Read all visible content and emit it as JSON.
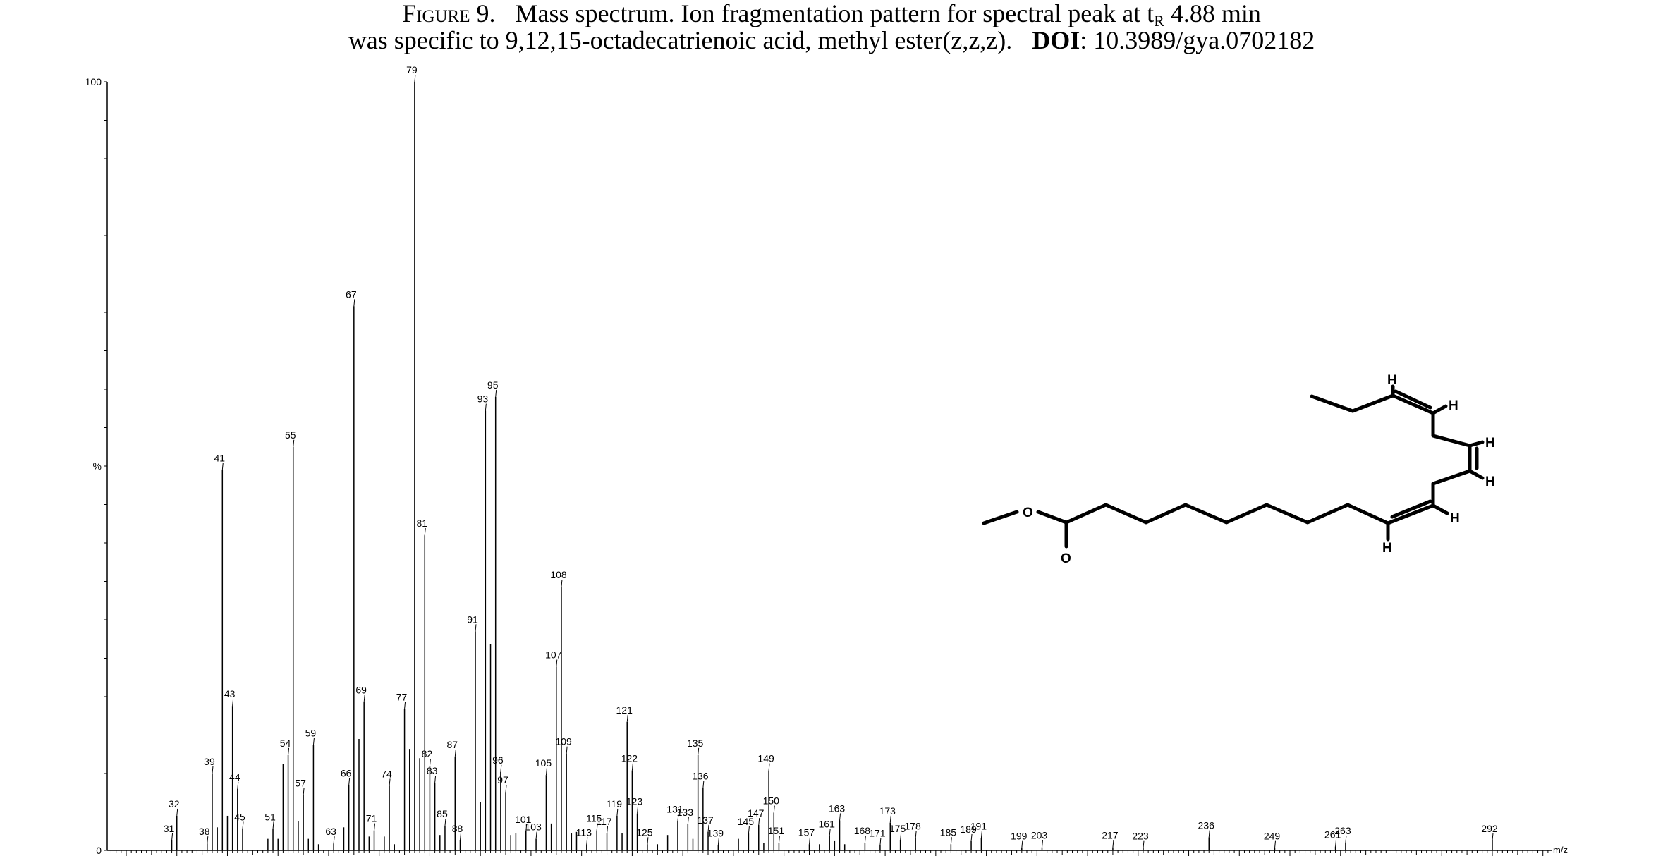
{
  "caption": {
    "figure_label": "Figure 9.",
    "line1_text": "Mass spectrum. Ion fragmentation pattern for spectral peak at t",
    "subscript": "R",
    "line1_end": " 4.88 min",
    "line2_text": "was specific to 9,12,15-octadecatrienoic acid, methyl ester(z,z,z).",
    "doi_label": "DOI",
    "doi_value": ": 10.3989/gya.0702182"
  },
  "chart_data": {
    "type": "bar",
    "xlabel": "m/z",
    "ylabel": "%",
    "xlim": [
      16,
      310
    ],
    "ylim": [
      0,
      100
    ],
    "y_ticks": [
      "0",
      "%",
      "100"
    ],
    "x_ticks": [
      22,
      32,
      42,
      52,
      62,
      72,
      82,
      92,
      102,
      112,
      122,
      132,
      142,
      152,
      162,
      172,
      182,
      192,
      202,
      212,
      222,
      232,
      242,
      252,
      262,
      272,
      282,
      292,
      302
    ],
    "peaks": [
      {
        "mz": 31,
        "value": 1.3,
        "label": "31"
      },
      {
        "mz": 32,
        "value": 4.5,
        "label": "32"
      },
      {
        "mz": 38,
        "value": 0.9,
        "label": "38"
      },
      {
        "mz": 39,
        "value": 10.0,
        "label": "39"
      },
      {
        "mz": 40,
        "value": 3.0
      },
      {
        "mz": 41,
        "value": 49.5,
        "label": "41"
      },
      {
        "mz": 42,
        "value": 4.5
      },
      {
        "mz": 43,
        "value": 18.8,
        "label": "43"
      },
      {
        "mz": 44,
        "value": 8.0,
        "label": "44"
      },
      {
        "mz": 45,
        "value": 2.8,
        "label": "45"
      },
      {
        "mz": 50,
        "value": 1.5
      },
      {
        "mz": 51,
        "value": 2.8,
        "label": "51"
      },
      {
        "mz": 52,
        "value": 1.5
      },
      {
        "mz": 53,
        "value": 11.2
      },
      {
        "mz": 54,
        "value": 12.4,
        "label": "54"
      },
      {
        "mz": 55,
        "value": 52.5,
        "label": "55"
      },
      {
        "mz": 56,
        "value": 3.8
      },
      {
        "mz": 57,
        "value": 7.2,
        "label": "57"
      },
      {
        "mz": 58,
        "value": 1.5
      },
      {
        "mz": 59,
        "value": 13.7,
        "label": "59"
      },
      {
        "mz": 60,
        "value": 0.8
      },
      {
        "mz": 63,
        "value": 0.9,
        "label": "63"
      },
      {
        "mz": 65,
        "value": 3.0
      },
      {
        "mz": 66,
        "value": 8.5,
        "label": "66"
      },
      {
        "mz": 67,
        "value": 70.8,
        "label": "67"
      },
      {
        "mz": 68,
        "value": 14.5
      },
      {
        "mz": 69,
        "value": 19.3,
        "label": "69"
      },
      {
        "mz": 70,
        "value": 1.8
      },
      {
        "mz": 71,
        "value": 2.6,
        "label": "71"
      },
      {
        "mz": 73,
        "value": 1.8
      },
      {
        "mz": 74,
        "value": 8.4,
        "label": "74"
      },
      {
        "mz": 75,
        "value": 0.8
      },
      {
        "mz": 77,
        "value": 18.4,
        "label": "77"
      },
      {
        "mz": 78,
        "value": 13.2
      },
      {
        "mz": 79,
        "value": 100,
        "label": "79"
      },
      {
        "mz": 80,
        "value": 12.0
      },
      {
        "mz": 81,
        "value": 41.0,
        "label": "81"
      },
      {
        "mz": 82,
        "value": 11.0,
        "label": "82"
      },
      {
        "mz": 83,
        "value": 8.8,
        "label": "83"
      },
      {
        "mz": 84,
        "value": 2.0
      },
      {
        "mz": 85,
        "value": 3.2,
        "label": "85"
      },
      {
        "mz": 87,
        "value": 12.2,
        "label": "87"
      },
      {
        "mz": 88,
        "value": 1.3,
        "label": "88"
      },
      {
        "mz": 91,
        "value": 28.5,
        "label": "91"
      },
      {
        "mz": 92,
        "value": 6.3
      },
      {
        "mz": 93,
        "value": 57.2,
        "label": "93"
      },
      {
        "mz": 94,
        "value": 26.8
      },
      {
        "mz": 95,
        "value": 59.0,
        "label": "95"
      },
      {
        "mz": 96,
        "value": 10.2,
        "label": "96"
      },
      {
        "mz": 97,
        "value": 7.6,
        "label": "97"
      },
      {
        "mz": 98,
        "value": 2.0
      },
      {
        "mz": 99,
        "value": 2.2
      },
      {
        "mz": 101,
        "value": 2.5,
        "label": "101"
      },
      {
        "mz": 103,
        "value": 1.5,
        "label": "103"
      },
      {
        "mz": 105,
        "value": 9.8,
        "label": "105"
      },
      {
        "mz": 106,
        "value": 3.5
      },
      {
        "mz": 107,
        "value": 23.9,
        "label": "107"
      },
      {
        "mz": 108,
        "value": 34.3,
        "label": "108"
      },
      {
        "mz": 109,
        "value": 12.6,
        "label": "109"
      },
      {
        "mz": 110,
        "value": 2.2
      },
      {
        "mz": 111,
        "value": 2.4
      },
      {
        "mz": 113,
        "value": 0.8,
        "label": "113"
      },
      {
        "mz": 115,
        "value": 2.6,
        "label": "115"
      },
      {
        "mz": 117,
        "value": 2.2,
        "label": "117"
      },
      {
        "mz": 119,
        "value": 4.5,
        "label": "119"
      },
      {
        "mz": 120,
        "value": 2.2
      },
      {
        "mz": 121,
        "value": 16.7,
        "label": "121"
      },
      {
        "mz": 122,
        "value": 10.4,
        "label": "122"
      },
      {
        "mz": 123,
        "value": 4.8,
        "label": "123"
      },
      {
        "mz": 125,
        "value": 0.8,
        "label": "125"
      },
      {
        "mz": 127,
        "value": 0.8
      },
      {
        "mz": 129,
        "value": 2.0
      },
      {
        "mz": 131,
        "value": 3.8,
        "label": "131"
      },
      {
        "mz": 133,
        "value": 3.4,
        "label": "133"
      },
      {
        "mz": 134,
        "value": 1.5
      },
      {
        "mz": 135,
        "value": 12.4,
        "label": "135"
      },
      {
        "mz": 136,
        "value": 8.1,
        "label": "136"
      },
      {
        "mz": 137,
        "value": 2.4,
        "label": "137"
      },
      {
        "mz": 139,
        "value": 0.7,
        "label": "139"
      },
      {
        "mz": 143,
        "value": 1.5
      },
      {
        "mz": 145,
        "value": 2.2,
        "label": "145"
      },
      {
        "mz": 147,
        "value": 3.3,
        "label": "147"
      },
      {
        "mz": 148,
        "value": 1.0
      },
      {
        "mz": 149,
        "value": 10.4,
        "label": "149"
      },
      {
        "mz": 150,
        "value": 4.9,
        "label": "150"
      },
      {
        "mz": 151,
        "value": 1.0,
        "label": "151"
      },
      {
        "mz": 157,
        "value": 0.8,
        "label": "157"
      },
      {
        "mz": 159,
        "value": 0.8
      },
      {
        "mz": 161,
        "value": 1.9,
        "label": "161"
      },
      {
        "mz": 162,
        "value": 1.2
      },
      {
        "mz": 163,
        "value": 3.9,
        "label": "163"
      },
      {
        "mz": 164,
        "value": 0.8
      },
      {
        "mz": 168,
        "value": 1.0,
        "label": "168"
      },
      {
        "mz": 171,
        "value": 0.7,
        "label": "171"
      },
      {
        "mz": 173,
        "value": 3.6,
        "label": "173"
      },
      {
        "mz": 175,
        "value": 1.3,
        "label": "175"
      },
      {
        "mz": 178,
        "value": 1.6,
        "label": "178"
      },
      {
        "mz": 185,
        "value": 0.8,
        "label": "185"
      },
      {
        "mz": 189,
        "value": 1.2,
        "label": "189"
      },
      {
        "mz": 191,
        "value": 1.6,
        "label": "191"
      },
      {
        "mz": 199,
        "value": 0.3,
        "label": "199"
      },
      {
        "mz": 203,
        "value": 0.4,
        "label": "203"
      },
      {
        "mz": 217,
        "value": 0.4,
        "label": "217"
      },
      {
        "mz": 223,
        "value": 0.3,
        "label": "223"
      },
      {
        "mz": 236,
        "value": 1.7,
        "label": "236"
      },
      {
        "mz": 249,
        "value": 0.3,
        "label": "249"
      },
      {
        "mz": 261,
        "value": 0.5,
        "label": "261"
      },
      {
        "mz": 263,
        "value": 1.0,
        "label": "263"
      },
      {
        "mz": 292,
        "value": 1.3,
        "label": "292"
      }
    ]
  },
  "structure": {
    "atom_labels": [
      "O",
      "O",
      "H",
      "H",
      "H",
      "H",
      "H",
      "H"
    ]
  }
}
